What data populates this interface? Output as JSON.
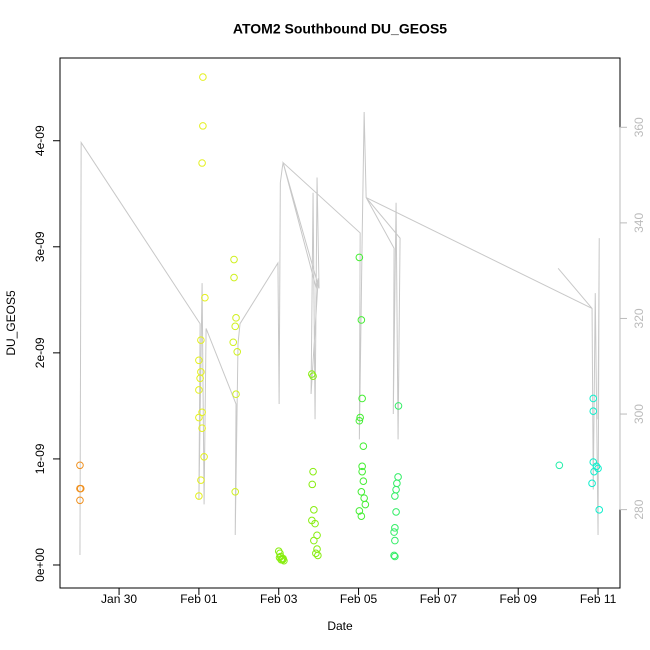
{
  "chart_data": {
    "type": "scatter",
    "title": "ATOM2 Southbound DU_GEOS5",
    "x_label": "Date",
    "y_label": "DU_GEOS5",
    "xlim": [
      28.52,
      42.55
    ],
    "xticks": [
      {
        "value": 30,
        "label": "Jan 30"
      },
      {
        "value": 32,
        "label": "Feb 01"
      },
      {
        "value": 34,
        "label": "Feb 03"
      },
      {
        "value": 36,
        "label": "Feb 05"
      },
      {
        "value": 38,
        "label": "Feb 07"
      },
      {
        "value": 40,
        "label": "Feb 09"
      },
      {
        "value": 42,
        "label": "Feb 11"
      }
    ],
    "ylim": [
      -2.17e-10,
      4.78e-09
    ],
    "yticks": [
      {
        "value": 0,
        "label": "0e+00"
      },
      {
        "value": 1e-09,
        "label": "1e-09"
      },
      {
        "value": 2e-09,
        "label": "2e-09"
      },
      {
        "value": 3e-09,
        "label": "3e-09"
      },
      {
        "value": 4e-09,
        "label": "4e-09"
      }
    ],
    "y2lim": [
      263.6,
      374.5
    ],
    "y2ticks": [
      280,
      300,
      320,
      340,
      360
    ],
    "y2_color": "#bbbbbb",
    "point_groups": [
      {
        "color": "#f0901e",
        "x": [
          29.02,
          29.02,
          29.04,
          29.02
        ],
        "values": [
          9.4e-10,
          7.2e-10,
          7.2e-10,
          6.1e-10
        ]
      },
      {
        "color": "#e4f020",
        "x": [
          32.1,
          32.1,
          32.08,
          32.15,
          32.05,
          32.0,
          32.05,
          32.03,
          32.0,
          32.08,
          32.0,
          32.08,
          32.13,
          32.05,
          32.0
        ],
        "values": [
          4.6e-09,
          4.14e-09,
          3.79e-09,
          2.52e-09,
          2.12e-09,
          1.93e-09,
          1.82e-09,
          1.76e-09,
          1.65e-09,
          1.44e-09,
          1.39e-09,
          1.29e-09,
          1.02e-09,
          8e-10,
          6.5e-10
        ]
      },
      {
        "color": "#d0f020",
        "x": [
          32.88,
          32.88,
          32.93,
          32.91,
          32.86,
          32.96,
          32.93,
          32.91
        ],
        "values": [
          2.88e-09,
          2.71e-09,
          2.33e-09,
          2.25e-09,
          2.1e-09,
          2.01e-09,
          1.61e-09,
          6.9e-10
        ]
      },
      {
        "color": "#88ee10",
        "x": [
          34.0,
          34.03,
          34.05,
          34.08,
          34.1,
          34.13,
          34.02,
          34.06,
          34.11,
          34.83,
          34.86,
          34.86,
          34.84,
          34.88,
          34.83,
          34.91,
          34.96,
          34.88,
          34.96,
          34.93,
          34.98
        ],
        "values": [
          1.3e-10,
          1.1e-10,
          8e-11,
          6e-11,
          5e-11,
          4e-11,
          7e-11,
          5e-11,
          6e-11,
          1.8e-09,
          1.78e-09,
          8.8e-10,
          7.6e-10,
          5.2e-10,
          4.2e-10,
          3.9e-10,
          2.8e-10,
          2.3e-10,
          1.5e-10,
          1.1e-10,
          9e-11
        ]
      },
      {
        "color": "#44ee33",
        "x": [
          36.02,
          36.07,
          36.09,
          36.04,
          36.02,
          36.12,
          36.09,
          36.09,
          36.12,
          36.07,
          36.14,
          36.17,
          36.02,
          36.07
        ],
        "values": [
          2.9e-09,
          2.31e-09,
          1.57e-09,
          1.39e-09,
          1.36e-09,
          1.12e-09,
          9.3e-10,
          8.8e-10,
          7.9e-10,
          6.9e-10,
          6.3e-10,
          5.7e-10,
          5.1e-10,
          4.6e-10
        ]
      },
      {
        "color": "#33ee66",
        "x": [
          37.0,
          36.99,
          36.96,
          36.94,
          36.91,
          36.94,
          36.91,
          36.89,
          36.91,
          36.89,
          36.91
        ],
        "values": [
          1.5e-09,
          8.3e-10,
          7.7e-10,
          7.1e-10,
          6.5e-10,
          5e-10,
          3.5e-10,
          3.1e-10,
          2.3e-10,
          9e-11,
          8e-11
        ]
      },
      {
        "color": "#22eeaa",
        "x": [
          41.03
        ],
        "values": [
          9.4e-10
        ]
      },
      {
        "color": "#11eecc",
        "x": [
          41.88,
          41.88,
          41.88,
          41.96,
          42.0,
          41.9,
          41.85,
          42.03
        ],
        "values": [
          1.57e-09,
          1.45e-09,
          9.7e-10,
          9.3e-10,
          9.1e-10,
          8.8e-10,
          7.7e-10,
          5.2e-10
        ]
      }
    ],
    "line": {
      "axis": "y2",
      "color": "#c8c8c8",
      "x": [
        29.02,
        29.05,
        32.03,
        32.0,
        32.08,
        32.13,
        32.18,
        32.93,
        32.91,
        32.98,
        33.03,
        33.98,
        34.01,
        34.04,
        34.09,
        34.11,
        34.94,
        34.99,
        34.81,
        34.86,
        34.91,
        34.96,
        35.01,
        34.11,
        36.04,
        36.02,
        36.09,
        36.14,
        36.19,
        36.89,
        36.87,
        36.94,
        36.99,
        37.04,
        36.19,
        41.85,
        41.88,
        41.93,
        42.0,
        42.03,
        42.0,
        41.0,
        41.0,
        41.85
      ],
      "values": [
        270.5,
        356.8,
        318.9,
        282.1,
        327.4,
        281.1,
        317.9,
        302.1,
        274.7,
        314.7,
        318.9,
        331.6,
        302.1,
        348.4,
        351.6,
        352.6,
        326.3,
        328.4,
        304.2,
        346.3,
        298.9,
        349.5,
        326.3,
        352.6,
        337.9,
        294.7,
        336.8,
        363.2,
        345.3,
        334.7,
        300.0,
        344.2,
        294.7,
        336.8,
        345.3,
        322.1,
        284.2,
        325.3,
        274.7,
        336.8,
        298.9,
        null,
        330.5,
        322.1
      ]
    }
  }
}
